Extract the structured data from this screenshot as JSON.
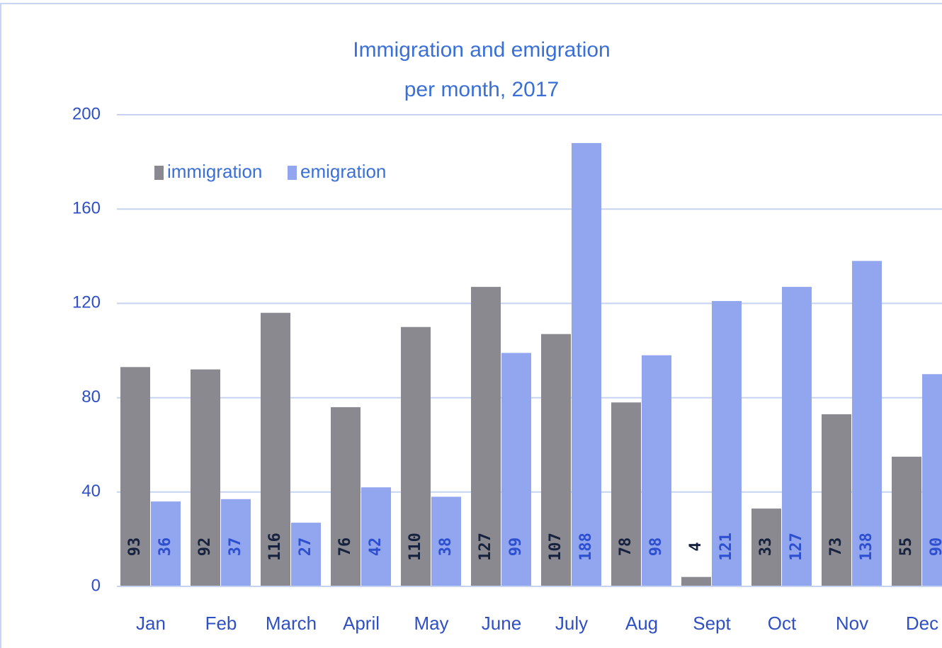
{
  "chart_data": {
    "type": "bar",
    "title": [
      "Immigration and emigration",
      "per month, 2017"
    ],
    "categories": [
      "Jan",
      "Feb",
      "March",
      "April",
      "May",
      "June",
      "July",
      "Aug",
      "Sept",
      "Oct",
      "Nov",
      "Dec"
    ],
    "series": [
      {
        "name": "immigration",
        "color": "#8a8990",
        "label_color": "#17223f",
        "values": [
          93,
          92,
          116,
          76,
          110,
          127,
          107,
          78,
          4,
          33,
          73,
          55
        ]
      },
      {
        "name": "emigration",
        "color": "#91a6ee",
        "label_color": "#2d4fd0",
        "values": [
          36,
          37,
          27,
          42,
          38,
          99,
          188,
          98,
          121,
          127,
          138,
          90
        ]
      }
    ],
    "ylim": [
      0,
      200
    ],
    "yticks": [
      0,
      40,
      80,
      120,
      160,
      200
    ],
    "grid": true
  }
}
